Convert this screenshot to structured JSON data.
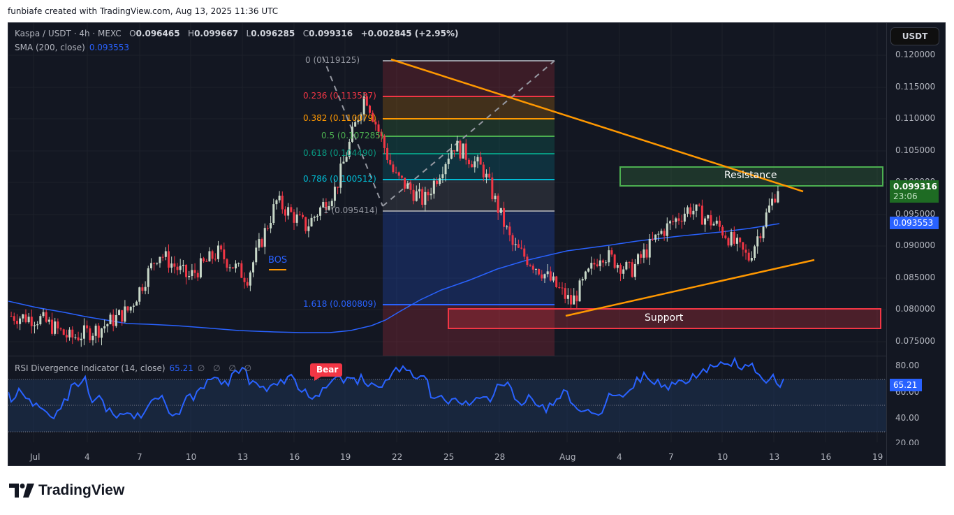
{
  "credit": "funbiafe created with TradingView.com, Aug 13, 2025 11:36 UTC",
  "header": {
    "symbol": "Kaspa / USDT · 4h · MEXC",
    "open_label": "O",
    "open": "0.096465",
    "high_label": "H",
    "high": "0.099667",
    "low_label": "L",
    "low": "0.096285",
    "close_label": "C",
    "close": "0.099316",
    "change": "+0.002845 (+2.95%)",
    "sma_label": "SMA (200, close)",
    "sma_value": "0.093553"
  },
  "currency_button": "USDT",
  "price_axis": {
    "ticks": [
      "0.120000",
      "0.115000",
      "0.110000",
      "0.105000",
      "0.100000",
      "0.095000",
      "0.090000",
      "0.085000",
      "0.080000",
      "0.075000"
    ],
    "last_price": "0.099316",
    "countdown": "23:06",
    "sma_tag": "0.093553"
  },
  "rsi": {
    "label": "RSI Divergence Indicator (14, close)",
    "value": "65.21",
    "na_values": "∅ ∅ ∅ ∅",
    "ticks": [
      "80.00",
      "60.00",
      "40.00",
      "20.00"
    ],
    "bear_label": "Bear"
  },
  "time_axis": [
    "Jul",
    "4",
    "7",
    "10",
    "13",
    "16",
    "19",
    "22",
    "25",
    "28",
    "Aug",
    "4",
    "7",
    "10",
    "13",
    "16",
    "19"
  ],
  "annotations": {
    "resistance": "Resistance",
    "support": "Support",
    "bos": "BOS"
  },
  "fibonacci": [
    {
      "label": "0 (0.119125)",
      "color": "#9598a1"
    },
    {
      "label": "0.236 (0.113537)",
      "color": "#f23645"
    },
    {
      "label": "0.382 (0.110079)",
      "color": "#ff9800"
    },
    {
      "label": "0.5 (0.107285)",
      "color": "#4caf50"
    },
    {
      "label": "0.618 (0.104490)",
      "color": "#089981"
    },
    {
      "label": "0.786 (0.100512)",
      "color": "#00bcd4"
    },
    {
      "label": "1 (0.095414)",
      "color": "#9598a1"
    },
    {
      "label": "1.618 (0.080809)",
      "color": "#2962ff"
    }
  ],
  "brand": "TradingView",
  "colors": {
    "background": "#131722",
    "up_candle": "#c8d8c8",
    "down_candle": "#f23645",
    "sma": "#2962ff",
    "trendline": "#ff9800",
    "last_price": "#1e6b23"
  },
  "chart_data": {
    "type": "candlestick",
    "title": "Kaspa / USDT · 4h · MEXC",
    "ylabel": "USDT",
    "ylim": [
      0.073,
      0.121
    ],
    "x_ticks": [
      "Jul",
      "4",
      "7",
      "10",
      "13",
      "16",
      "19",
      "22",
      "25",
      "28",
      "Aug",
      "4",
      "7",
      "10",
      "13",
      "16",
      "19"
    ],
    "ohlc_last": {
      "open": 0.096465,
      "high": 0.099667,
      "low": 0.096285,
      "close": 0.099316,
      "change": 0.002845,
      "change_pct": 2.95
    },
    "approx_close_path": [
      {
        "date": "Jul 1",
        "close": 0.079
      },
      {
        "date": "Jul 4",
        "close": 0.0785
      },
      {
        "date": "Jul 6",
        "close": 0.0755
      },
      {
        "date": "Jul 8",
        "close": 0.077
      },
      {
        "date": "Jul 10",
        "close": 0.08
      },
      {
        "date": "Jul 12",
        "close": 0.089
      },
      {
        "date": "Jul 13",
        "close": 0.085
      },
      {
        "date": "Jul 15",
        "close": 0.089
      },
      {
        "date": "Jul 16",
        "close": 0.085
      },
      {
        "date": "Jul 18",
        "close": 0.097
      },
      {
        "date": "Jul 19",
        "close": 0.093
      },
      {
        "date": "Jul 21",
        "close": 0.099
      },
      {
        "date": "Jul 22",
        "close": 0.114
      },
      {
        "date": "Jul 24",
        "close": 0.101
      },
      {
        "date": "Jul 25",
        "close": 0.097
      },
      {
        "date": "Jul 27",
        "close": 0.106
      },
      {
        "date": "Jul 28",
        "close": 0.102
      },
      {
        "date": "Jul 30",
        "close": 0.09
      },
      {
        "date": "Aug 1",
        "close": 0.086
      },
      {
        "date": "Aug 2",
        "close": 0.081
      },
      {
        "date": "Aug 4",
        "close": 0.089
      },
      {
        "date": "Aug 6",
        "close": 0.086
      },
      {
        "date": "Aug 8",
        "close": 0.092
      },
      {
        "date": "Aug 9",
        "close": 0.096
      },
      {
        "date": "Aug 11",
        "close": 0.093
      },
      {
        "date": "Aug 12",
        "close": 0.088
      },
      {
        "date": "Aug 13",
        "close": 0.0993
      }
    ],
    "series": [
      {
        "name": "SMA (200, close)",
        "last": 0.093553
      },
      {
        "name": "RSI (14)",
        "last": 65.21,
        "ylim": [
          20,
          80
        ],
        "bands": [
          30,
          50,
          70
        ]
      }
    ],
    "fib_levels": [
      {
        "ratio": 0,
        "price": 0.119125
      },
      {
        "ratio": 0.236,
        "price": 0.113537
      },
      {
        "ratio": 0.382,
        "price": 0.110079
      },
      {
        "ratio": 0.5,
        "price": 0.107285
      },
      {
        "ratio": 0.618,
        "price": 0.10449
      },
      {
        "ratio": 0.786,
        "price": 0.100512
      },
      {
        "ratio": 1,
        "price": 0.095414
      },
      {
        "ratio": 1.618,
        "price": 0.080809
      }
    ],
    "zones": [
      {
        "name": "Resistance",
        "low": 0.0995,
        "high": 0.1025
      },
      {
        "name": "Support",
        "low": 0.0772,
        "high": 0.0802
      }
    ],
    "trendlines": [
      {
        "name": "descending resistance",
        "from": {
          "date": "Jul 22",
          "price": 0.119
        },
        "to": {
          "date": "Aug 13",
          "price": 0.0992
        }
      },
      {
        "name": "ascending support",
        "from": {
          "date": "Aug 1",
          "price": 0.079
        },
        "to": {
          "date": "Aug 14",
          "price": 0.0875
        }
      }
    ],
    "annotations": [
      "BOS",
      "Bear",
      "Resistance",
      "Support"
    ]
  }
}
